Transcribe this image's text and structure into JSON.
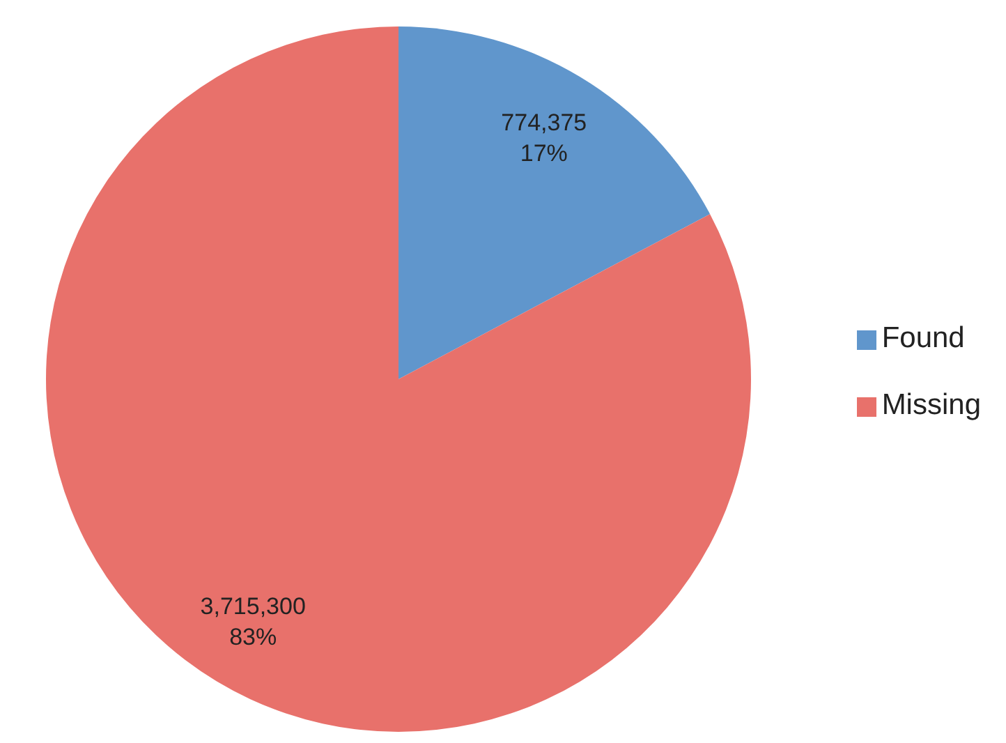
{
  "chart_data": {
    "type": "pie",
    "categories": [
      "Found",
      "Missing"
    ],
    "values": [
      774375,
      3715300
    ],
    "colors": [
      "#6096cc",
      "#e8716b"
    ],
    "value_labels": [
      "774,375\n17%",
      "3,715,300\n83%"
    ],
    "legend": "right"
  }
}
